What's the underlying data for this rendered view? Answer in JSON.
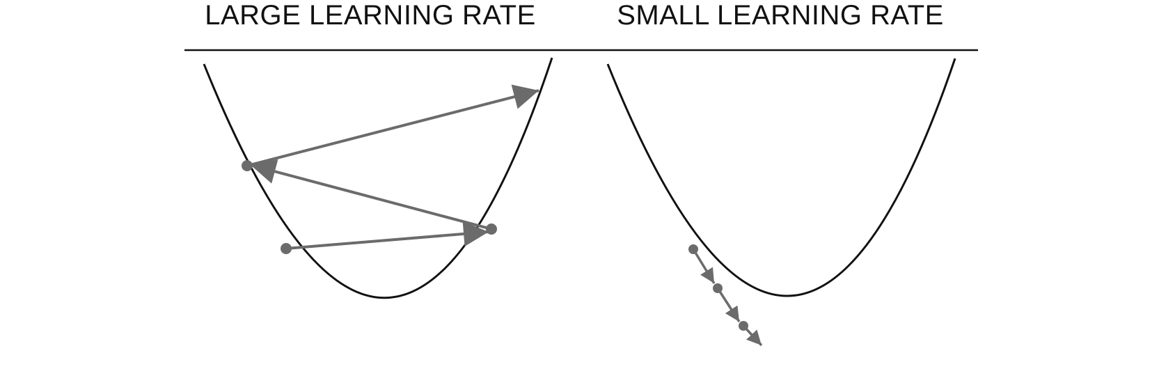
{
  "panels": [
    {
      "title": "LARGE LEARNING RATE"
    },
    {
      "title": "SMALL LEARNING RATE"
    }
  ],
  "colors": {
    "curve": "#111111",
    "arrow": "#6b6b6b",
    "divider": "#111111",
    "text": "#111111"
  }
}
